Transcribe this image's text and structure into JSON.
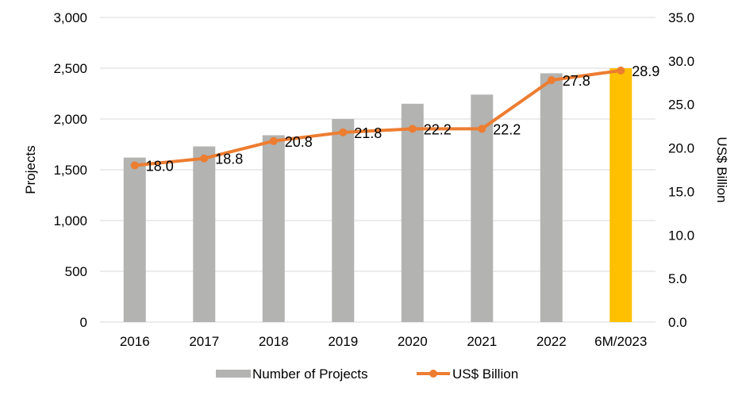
{
  "chart_data": {
    "type": "bar",
    "categories": [
      "2016",
      "2017",
      "2018",
      "2019",
      "2020",
      "2021",
      "2022",
      "6M/2023"
    ],
    "series": [
      {
        "name": "Number of Projects",
        "kind": "bar",
        "axis": "left",
        "values": [
          1620,
          1730,
          1840,
          2000,
          2150,
          2240,
          2450,
          2500
        ],
        "color": "#b3b3b1",
        "highlight_color": "#ffc000",
        "highlight_index": 7
      },
      {
        "name": "US$ Billion",
        "kind": "line",
        "axis": "right",
        "values": [
          18.0,
          18.8,
          20.8,
          21.8,
          22.2,
          22.2,
          27.8,
          28.9
        ],
        "labels": [
          "18.0",
          "18.8",
          "20.8",
          "21.8",
          "22.2",
          "22.2",
          "27.8",
          "28.9"
        ],
        "color": "#ed7d31"
      }
    ],
    "ylabel": "Projects",
    "y2label": "US$ Billion",
    "ylim": [
      0,
      3000
    ],
    "y2lim": [
      0,
      35
    ],
    "yticks": [
      "0",
      "500",
      "1,000",
      "1,500",
      "2,000",
      "2,500",
      "3,000"
    ],
    "y2ticks": [
      "0.0",
      "5.0",
      "10.0",
      "15.0",
      "20.0",
      "25.0",
      "30.0",
      "35.0"
    ],
    "grid": true,
    "legend_position": "bottom"
  }
}
